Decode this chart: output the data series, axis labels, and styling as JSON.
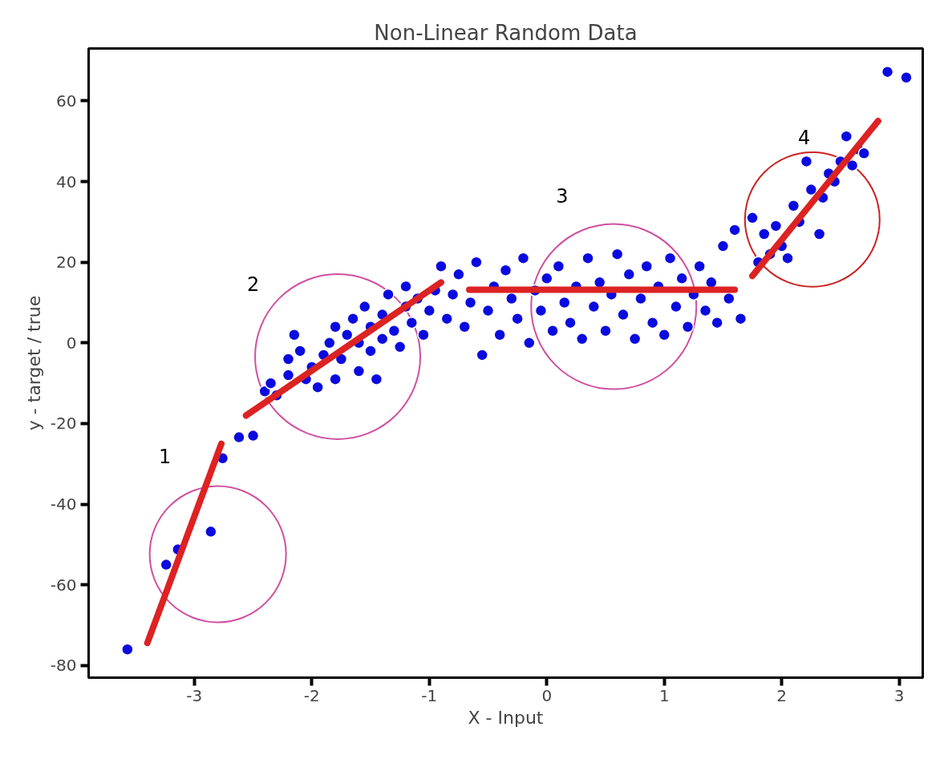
{
  "chart_data": {
    "type": "scatter",
    "title": "Non-Linear Random Data",
    "xlabel": "X - Input",
    "ylabel": "y - target / true",
    "xlim": [
      -3.9,
      3.2
    ],
    "ylim": [
      -83,
      73
    ],
    "xticks": [
      -3,
      -2,
      -1,
      0,
      1,
      2,
      3
    ],
    "yticks": [
      -80,
      -60,
      -40,
      -20,
      0,
      20,
      40,
      60
    ],
    "marker": "circle",
    "grid": false,
    "annotations": [
      "1",
      "2",
      "3",
      "4"
    ],
    "series": [
      {
        "color": "#0a0ae0",
        "x": [
          -3.57,
          -3.24,
          -3.14,
          -2.86,
          -2.76,
          -2.62,
          -2.5,
          -2.4,
          -2.35,
          -2.3,
          -2.2,
          -2.2,
          -2.15,
          -2.1,
          -2.05,
          -2.0,
          -1.95,
          -1.9,
          -1.85,
          -1.8,
          -1.8,
          -1.75,
          -1.7,
          -1.65,
          -1.6,
          -1.6,
          -1.55,
          -1.5,
          -1.5,
          -1.45,
          -1.4,
          -1.4,
          -1.35,
          -1.3,
          -1.25,
          -1.2,
          -1.2,
          -1.15,
          -1.1,
          -1.05,
          -1.0,
          -0.95,
          -0.9,
          -0.85,
          -0.8,
          -0.75,
          -0.7,
          -0.65,
          -0.6,
          -0.55,
          -0.5,
          -0.45,
          -0.4,
          -0.35,
          -0.3,
          -0.25,
          -0.2,
          -0.15,
          -0.1,
          -0.05,
          0.0,
          0.05,
          0.1,
          0.15,
          0.2,
          0.25,
          0.3,
          0.35,
          0.4,
          0.45,
          0.5,
          0.55,
          0.6,
          0.65,
          0.7,
          0.75,
          0.8,
          0.85,
          0.9,
          0.95,
          1.0,
          1.05,
          1.1,
          1.15,
          1.2,
          1.25,
          1.3,
          1.35,
          1.4,
          1.45,
          1.5,
          1.55,
          1.6,
          1.65,
          1.75,
          1.8,
          1.85,
          1.9,
          1.95,
          2.0,
          2.05,
          2.1,
          2.15,
          2.21,
          2.25,
          2.32,
          2.35,
          2.4,
          2.45,
          2.5,
          2.55,
          2.6,
          2.65,
          2.7,
          2.9,
          3.06
        ],
        "values": [
          -76,
          -55,
          -51.2,
          -46.8,
          -28.6,
          -23.4,
          -23,
          -12,
          -10,
          -13,
          -8,
          -4,
          2,
          -2,
          -9,
          -6,
          -11,
          -3,
          0,
          -9,
          4,
          -4,
          2,
          6,
          -7,
          0,
          9,
          -2,
          4,
          -9,
          1,
          7,
          12,
          3,
          -1,
          9,
          14,
          5,
          11,
          2,
          8,
          13,
          19,
          6,
          12,
          17,
          4,
          10,
          20,
          -3,
          8,
          14,
          2,
          18,
          11,
          6,
          21,
          0,
          13,
          8,
          16,
          3,
          19,
          10,
          5,
          14,
          1,
          21,
          9,
          15,
          3,
          12,
          22,
          7,
          17,
          1,
          11,
          19,
          5,
          14,
          2,
          21,
          9,
          16,
          4,
          12,
          19,
          8,
          15,
          5,
          24,
          11,
          28,
          6,
          31,
          20,
          27,
          22,
          29,
          24,
          21,
          34,
          30,
          45,
          38,
          27,
          36,
          42,
          40,
          45,
          51.2,
          44,
          48,
          47,
          67.2,
          65.8
        ]
      },
      {
        "type": "line",
        "marker": "none",
        "color": "#dd2222",
        "x": [
          -3.4,
          -2.77
        ],
        "values": [
          -74.4,
          -25
        ]
      },
      {
        "type": "line",
        "marker": "none",
        "color": "#dd2222",
        "x": [
          -2.56,
          -0.9
        ],
        "values": [
          -18,
          15
        ]
      },
      {
        "type": "line",
        "marker": "none",
        "color": "#dd2222",
        "x": [
          -0.66,
          1.6
        ],
        "values": [
          13.2,
          13.2
        ]
      },
      {
        "type": "line",
        "marker": "none",
        "color": "#dd2222",
        "x": [
          1.75,
          2.82
        ],
        "values": [
          16.6,
          55
        ]
      }
    ]
  }
}
